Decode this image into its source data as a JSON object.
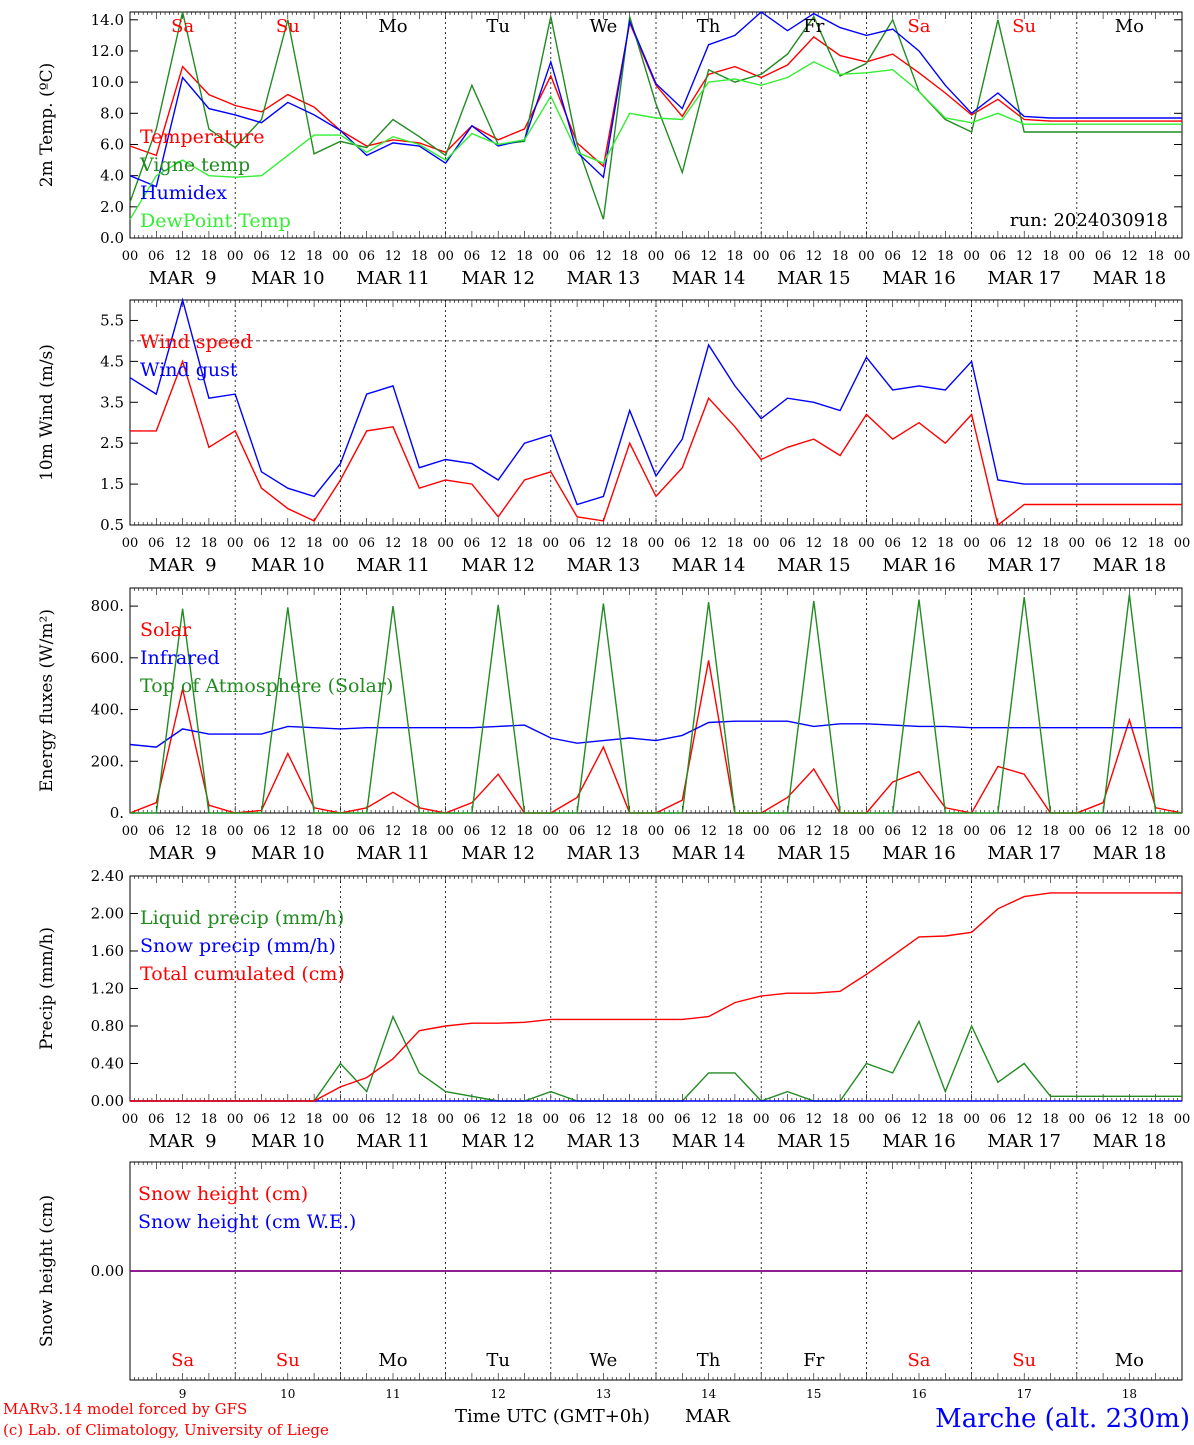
{
  "footer": {
    "model": "MARv3.14 model forced by GFS",
    "credit": "(c) Lab. of Climatology, University of Liege",
    "xlabel": "Time UTC (GMT+0h)",
    "month": "MAR",
    "location": "Marche (alt. 230m)"
  },
  "colors": {
    "red": "#ff0000",
    "green": "#228b22",
    "blue": "#0000ff",
    "lightgreen": "#33ee33",
    "purple": "#800080",
    "weekend": "#ff0000",
    "weekday": "#000000"
  },
  "days": [
    {
      "abbr": "Sa",
      "date": "MAR  9",
      "num": "9",
      "weekend": true
    },
    {
      "abbr": "Su",
      "date": "MAR 10",
      "num": "10",
      "weekend": true
    },
    {
      "abbr": "Mo",
      "date": "MAR 11",
      "num": "11",
      "weekend": false
    },
    {
      "abbr": "Tu",
      "date": "MAR 12",
      "num": "12",
      "weekend": false
    },
    {
      "abbr": "We",
      "date": "MAR 13",
      "num": "13",
      "weekend": false
    },
    {
      "abbr": "Th",
      "date": "MAR 14",
      "num": "14",
      "weekend": false
    },
    {
      "abbr": "Fr",
      "date": "MAR 15",
      "num": "15",
      "weekend": false
    },
    {
      "abbr": "Sa",
      "date": "MAR 16",
      "num": "16",
      "weekend": true
    },
    {
      "abbr": "Su",
      "date": "MAR 17",
      "num": "17",
      "weekend": true
    },
    {
      "abbr": "Mo",
      "date": "MAR 18",
      "num": "18",
      "weekend": false
    }
  ],
  "hour_labels": [
    "00",
    "06",
    "12",
    "18"
  ],
  "chart_data": [
    {
      "id": "temp",
      "type": "line",
      "ylabel": "2m Temp. (ºC)",
      "ylim": [
        0,
        14.5
      ],
      "yticks": [
        "0.0",
        "2.0",
        "4.0",
        "6.0",
        "8.0",
        "10.0",
        "12.0",
        "14.0"
      ],
      "ytick_values": [
        0,
        2,
        4,
        6,
        8,
        10,
        12,
        14
      ],
      "annotation": "run: 2024030918",
      "x_hours": [
        0,
        6,
        12,
        18,
        24,
        30,
        36,
        42,
        48,
        54,
        60,
        66,
        72,
        78,
        84,
        90,
        96,
        102,
        108,
        114,
        120,
        126,
        132,
        138,
        144,
        150,
        156,
        162,
        168,
        174,
        180,
        186,
        192,
        198,
        204,
        210,
        216,
        222,
        228,
        234,
        240
      ],
      "series": [
        {
          "name": "Temperature",
          "color": "red",
          "values": [
            5.9,
            5.3,
            11.0,
            9.2,
            8.5,
            8.1,
            9.2,
            8.4,
            6.9,
            5.9,
            6.3,
            6.1,
            5.5,
            7.2,
            6.3,
            7.0,
            10.4,
            6.1,
            4.6,
            13.8,
            9.8,
            7.8,
            10.5,
            11.0,
            10.3,
            11.1,
            12.9,
            11.7,
            11.3,
            11.8,
            10.6,
            9.3,
            7.9,
            8.9,
            7.6,
            7.5,
            7.5,
            7.5,
            7.5,
            7.5,
            7.5
          ]
        },
        {
          "name": "Vigne temp",
          "color": "green",
          "values": [
            2.3,
            7.0,
            14.5,
            7.0,
            5.8,
            7.6,
            14.0,
            5.4,
            6.2,
            5.8,
            7.6,
            6.5,
            5.3,
            9.8,
            6.0,
            6.2,
            14.2,
            6.0,
            1.2,
            14.2,
            8.6,
            4.2,
            10.8,
            10.0,
            10.5,
            11.8,
            14.2,
            10.4,
            11.2,
            14.0,
            9.4,
            7.6,
            6.8,
            14.0,
            6.8,
            6.8,
            6.8,
            6.8,
            6.8,
            6.8,
            6.8
          ]
        },
        {
          "name": "Humidex",
          "color": "blue",
          "values": [
            4.0,
            3.3,
            10.3,
            8.3,
            7.9,
            7.4,
            8.7,
            7.9,
            6.9,
            5.3,
            6.1,
            5.9,
            4.8,
            7.2,
            5.9,
            6.3,
            11.3,
            5.5,
            3.9,
            13.9,
            9.9,
            8.3,
            12.4,
            13.0,
            14.5,
            13.3,
            14.4,
            13.5,
            13.0,
            13.4,
            12.0,
            9.8,
            8.0,
            9.3,
            7.8,
            7.7,
            7.7,
            7.7,
            7.7,
            7.7,
            7.7
          ]
        },
        {
          "name": "DewPoint Temp",
          "color": "lightgreen",
          "values": [
            1.2,
            4.0,
            5.0,
            4.0,
            3.9,
            4.0,
            5.3,
            6.6,
            6.6,
            5.5,
            6.5,
            6.0,
            5.0,
            6.7,
            6.0,
            6.3,
            9.1,
            5.5,
            4.8,
            8.0,
            7.7,
            7.6,
            10.0,
            10.2,
            9.8,
            10.3,
            11.3,
            10.5,
            10.6,
            10.8,
            9.4,
            7.7,
            7.4,
            8.0,
            7.3,
            7.3,
            7.3,
            7.3,
            7.3,
            7.3,
            7.3
          ]
        }
      ]
    },
    {
      "id": "wind",
      "type": "line",
      "ylabel": "10m Wind (m/s)",
      "ylim": [
        0.5,
        6.0
      ],
      "yticks": [
        "0.5",
        "1.5",
        "2.5",
        "3.5",
        "4.5",
        "5.5"
      ],
      "ytick_values": [
        0.5,
        1.5,
        2.5,
        3.5,
        4.5,
        5.5
      ],
      "hline": 5,
      "x_hours": [
        0,
        6,
        12,
        18,
        24,
        30,
        36,
        42,
        48,
        54,
        60,
        66,
        72,
        78,
        84,
        90,
        96,
        102,
        108,
        114,
        120,
        126,
        132,
        138,
        144,
        150,
        156,
        162,
        168,
        174,
        180,
        186,
        192,
        198,
        204,
        210,
        216,
        222,
        228,
        234,
        240
      ],
      "series": [
        {
          "name": "Wind speed",
          "color": "red",
          "values": [
            2.8,
            2.8,
            4.5,
            2.4,
            2.8,
            1.4,
            0.9,
            0.6,
            1.6,
            2.8,
            2.9,
            1.4,
            1.6,
            1.5,
            0.7,
            1.6,
            1.8,
            0.7,
            0.6,
            2.5,
            1.2,
            1.9,
            3.6,
            2.9,
            2.1,
            2.4,
            2.6,
            2.2,
            3.2,
            2.6,
            3.0,
            2.5,
            3.2,
            0.5,
            1.0,
            1.0,
            1.0,
            1.0,
            1.0,
            1.0,
            1.0
          ]
        },
        {
          "name": "Wind gust",
          "color": "blue",
          "values": [
            4.1,
            3.7,
            6.0,
            3.6,
            3.7,
            1.8,
            1.4,
            1.2,
            2.0,
            3.7,
            3.9,
            1.9,
            2.1,
            2.0,
            1.6,
            2.5,
            2.7,
            1.0,
            1.2,
            3.3,
            1.7,
            2.6,
            4.9,
            3.9,
            3.1,
            3.6,
            3.5,
            3.3,
            4.6,
            3.8,
            3.9,
            3.8,
            4.5,
            1.6,
            1.5,
            1.5,
            1.5,
            1.5,
            1.5,
            1.5,
            1.5
          ]
        }
      ]
    },
    {
      "id": "flux",
      "type": "line",
      "ylabel": "Energy fluxes (W/m²)",
      "ylim": [
        0,
        870
      ],
      "yticks": [
        "0.",
        "200.",
        "400.",
        "600.",
        "800."
      ],
      "ytick_values": [
        0,
        200,
        400,
        600,
        800
      ],
      "x_hours": [
        0,
        6,
        12,
        18,
        24,
        30,
        36,
        42,
        48,
        54,
        60,
        66,
        72,
        78,
        84,
        90,
        96,
        102,
        108,
        114,
        120,
        126,
        132,
        138,
        144,
        150,
        156,
        162,
        168,
        174,
        180,
        186,
        192,
        198,
        204,
        210,
        216,
        222,
        228,
        234,
        240
      ],
      "series": [
        {
          "name": "Solar",
          "color": "red",
          "values": [
            0,
            40,
            480,
            30,
            0,
            10,
            230,
            20,
            0,
            20,
            80,
            20,
            0,
            40,
            150,
            0,
            0,
            60,
            255,
            0,
            0,
            50,
            590,
            0,
            0,
            60,
            170,
            0,
            0,
            120,
            160,
            20,
            0,
            180,
            150,
            0,
            0,
            40,
            360,
            20,
            0
          ]
        },
        {
          "name": "Infrared",
          "color": "blue",
          "values": [
            265,
            255,
            325,
            305,
            305,
            305,
            335,
            330,
            325,
            330,
            330,
            330,
            330,
            330,
            335,
            340,
            290,
            270,
            280,
            290,
            280,
            300,
            350,
            355,
            355,
            355,
            335,
            345,
            345,
            340,
            335,
            335,
            330,
            330,
            330,
            330,
            330,
            330,
            330,
            330,
            330
          ]
        },
        {
          "name": "Top of Atmosphere (Solar)",
          "color": "green",
          "values": [
            0,
            0,
            790,
            0,
            0,
            0,
            795,
            0,
            0,
            0,
            800,
            0,
            0,
            0,
            805,
            0,
            0,
            0,
            810,
            0,
            0,
            0,
            815,
            0,
            0,
            0,
            820,
            0,
            0,
            0,
            825,
            0,
            0,
            0,
            835,
            0,
            0,
            0,
            845,
            0,
            0
          ]
        }
      ]
    },
    {
      "id": "precip",
      "type": "line",
      "ylabel": "Precip (mm/h)",
      "ylim": [
        0,
        2.4
      ],
      "yticks": [
        "0.00",
        "0.40",
        "0.80",
        "1.20",
        "1.60",
        "2.00",
        "2.40"
      ],
      "ytick_values": [
        0,
        0.4,
        0.8,
        1.2,
        1.6,
        2.0,
        2.4
      ],
      "x_hours": [
        0,
        6,
        12,
        18,
        24,
        30,
        36,
        42,
        48,
        54,
        60,
        66,
        72,
        78,
        84,
        90,
        96,
        102,
        108,
        114,
        120,
        126,
        132,
        138,
        144,
        150,
        156,
        162,
        168,
        174,
        180,
        186,
        192,
        198,
        204,
        210,
        216,
        222,
        228,
        234,
        240
      ],
      "series": [
        {
          "name": "Liquid precip (mm/h)",
          "color": "green",
          "values": [
            0,
            0,
            0,
            0,
            0,
            0,
            0,
            0,
            0.4,
            0.1,
            0.9,
            0.3,
            0.1,
            0.05,
            0,
            0,
            0.1,
            0,
            0,
            0,
            0,
            0,
            0.3,
            0.3,
            0,
            0.1,
            0,
            0,
            0.4,
            0.3,
            0.85,
            0.1,
            0.8,
            0.2,
            0.4,
            0.05,
            0.05,
            0.05,
            0.05,
            0.05,
            0.05
          ]
        },
        {
          "name": "Snow precip (mm/h)",
          "color": "blue",
          "values": [
            0,
            0,
            0,
            0,
            0,
            0,
            0,
            0,
            0,
            0,
            0,
            0,
            0,
            0,
            0,
            0,
            0,
            0,
            0,
            0,
            0,
            0,
            0,
            0,
            0,
            0,
            0,
            0,
            0,
            0,
            0,
            0,
            0,
            0,
            0,
            0,
            0,
            0,
            0,
            0,
            0
          ]
        },
        {
          "name": "Total cumulated (cm)",
          "color": "red",
          "values": [
            0,
            0,
            0,
            0,
            0,
            0,
            0,
            0,
            0.15,
            0.25,
            0.45,
            0.75,
            0.8,
            0.83,
            0.83,
            0.84,
            0.87,
            0.87,
            0.87,
            0.87,
            0.87,
            0.87,
            0.9,
            1.05,
            1.12,
            1.15,
            1.15,
            1.17,
            1.35,
            1.55,
            1.75,
            1.76,
            1.8,
            2.05,
            2.18,
            2.22,
            2.22,
            2.22,
            2.22,
            2.22,
            2.22
          ]
        }
      ]
    },
    {
      "id": "snow",
      "type": "line",
      "ylabel": "Snow height (cm)",
      "ylim": [
        -1,
        1
      ],
      "yticks": [
        "0.00"
      ],
      "ytick_values": [
        0
      ],
      "x_hours": [
        0,
        240
      ],
      "series": [
        {
          "name": "Snow height (cm)",
          "color": "red",
          "values": [
            0,
            0
          ]
        },
        {
          "name": "Snow height (cm W.E.)",
          "color": "blue",
          "values": [
            0,
            0
          ]
        }
      ]
    }
  ]
}
